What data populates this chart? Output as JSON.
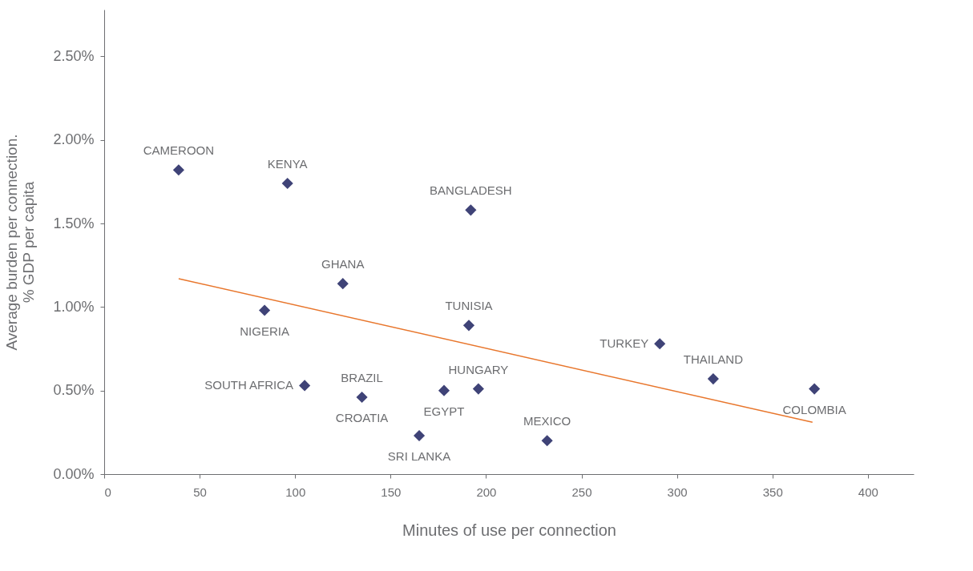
{
  "chart_data": {
    "type": "scatter",
    "xlabel": "Minutes of use per connection",
    "ylabel": "Average burden per connection.\n% GDP per capita",
    "xlim": [
      0,
      424
    ],
    "xticks": [
      0,
      50,
      100,
      150,
      200,
      250,
      300,
      350,
      400
    ],
    "ylim": [
      0,
      2.78
    ],
    "yticks": [
      {
        "value": 0,
        "label": "0.00%"
      },
      {
        "value": 0.5,
        "label": "0.50%"
      },
      {
        "value": 1.0,
        "label": "1.00%"
      },
      {
        "value": 1.5,
        "label": "1.50%"
      },
      {
        "value": 2.0,
        "label": "2.00%"
      },
      {
        "value": 2.5,
        "label": "2.50%"
      }
    ],
    "grid": false,
    "series": [
      {
        "marker": "diamond",
        "color": "#3f4377",
        "x": [
          39,
          96,
          192,
          125,
          84,
          191,
          291,
          319,
          372,
          105,
          135,
          178,
          196,
          165,
          232
        ],
        "values": [
          1.82,
          1.74,
          1.58,
          1.14,
          0.98,
          0.89,
          0.78,
          0.57,
          0.51,
          0.53,
          0.46,
          0.5,
          0.51,
          0.23,
          0.2
        ]
      },
      {
        "type": "line",
        "color": "#e8762c",
        "x": [
          39,
          371
        ],
        "values": [
          1.17,
          0.31
        ]
      }
    ],
    "annotations": [
      {
        "text": "CAMEROON",
        "x": 39,
        "y": 1.82
      },
      {
        "text": "KENYA",
        "x": 96,
        "y": 1.74
      },
      {
        "text": "BANGLADESH",
        "x": 192,
        "y": 1.58
      },
      {
        "text": "GHANA",
        "x": 125,
        "y": 1.14
      },
      {
        "text": "NIGERIA",
        "x": 84,
        "y": 0.98
      },
      {
        "text": "TUNISIA",
        "x": 191,
        "y": 0.89
      },
      {
        "text": "TURKEY",
        "x": 291,
        "y": 0.78
      },
      {
        "text": "THAILAND",
        "x": 319,
        "y": 0.57
      },
      {
        "text": "COLOMBIA",
        "x": 372,
        "y": 0.51
      },
      {
        "text": "SOUTH AFRICA",
        "x": 105,
        "y": 0.53
      },
      {
        "text": "BRAZIL",
        "x": 135,
        "y": 0.46
      },
      {
        "text": "CROATIA",
        "x": 135,
        "y": 0.46
      },
      {
        "text": "EGYPT",
        "x": 178,
        "y": 0.5
      },
      {
        "text": "HUNGARY",
        "x": 196,
        "y": 0.51
      },
      {
        "text": "SRI LANKA",
        "x": 165,
        "y": 0.23
      },
      {
        "text": "MEXICO",
        "x": 232,
        "y": 0.2
      }
    ]
  }
}
